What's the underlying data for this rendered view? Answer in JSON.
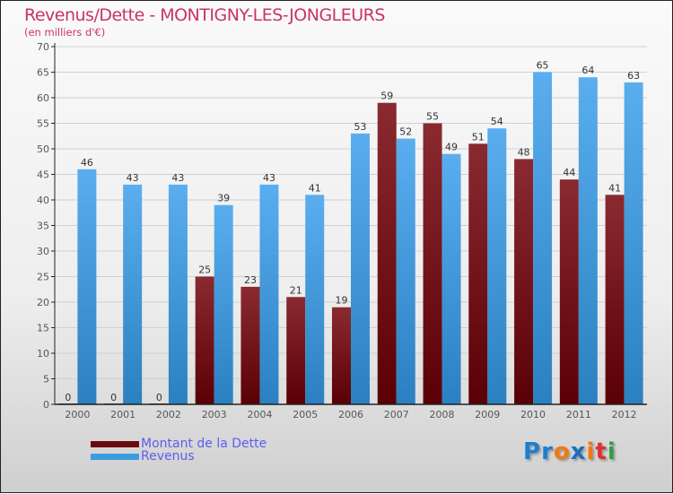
{
  "chart_data": {
    "type": "bar",
    "title": "Revenus/Dette - MONTIGNY-LES-JONGLEURS",
    "subtitle": "(en milliers d'€)",
    "categories": [
      "2000",
      "2001",
      "2002",
      "2003",
      "2004",
      "2005",
      "2006",
      "2007",
      "2008",
      "2009",
      "2010",
      "2011",
      "2012"
    ],
    "series": [
      {
        "name": "Montant de la Dette",
        "color": "#6b0a0e",
        "values": [
          0,
          0,
          0,
          25,
          23,
          21,
          19,
          59,
          55,
          51,
          48,
          44,
          41
        ]
      },
      {
        "name": "Revenus",
        "color": "#3a9de0",
        "values": [
          46,
          43,
          43,
          39,
          43,
          41,
          53,
          52,
          49,
          54,
          65,
          64,
          63
        ]
      }
    ],
    "ylim": [
      0,
      70
    ],
    "yticks": [
      0,
      5,
      10,
      15,
      20,
      25,
      30,
      35,
      40,
      45,
      50,
      55,
      60,
      65,
      70
    ],
    "grid": true,
    "legend": "bottom-left"
  },
  "logo": {
    "text": "Proxiti"
  }
}
